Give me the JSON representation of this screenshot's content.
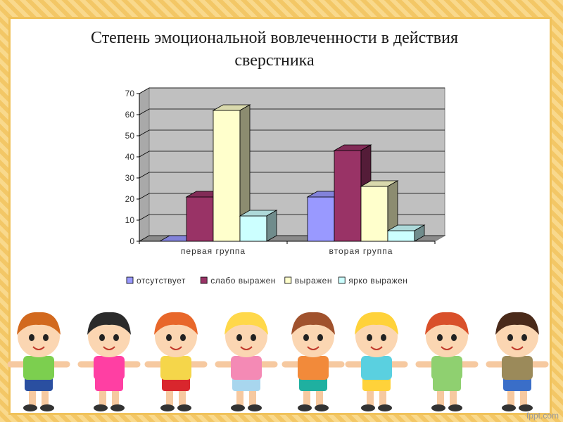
{
  "slide": {
    "title_line1": "Степень эмоциональной вовлеченности в действия",
    "title_line2": "сверстника",
    "watermark": "fppt.com"
  },
  "chart_data": {
    "type": "bar",
    "categories": [
      "первая группа",
      "вторая группа"
    ],
    "series": [
      {
        "name": "отсутствует",
        "values": [
          0,
          21
        ],
        "color": "#9999ff"
      },
      {
        "name": "слабо выражен",
        "values": [
          21,
          43
        ],
        "color": "#993366"
      },
      {
        "name": "выражен",
        "values": [
          62,
          26
        ],
        "color": "#ffffcc"
      },
      {
        "name": "ярко выражен",
        "values": [
          12,
          5
        ],
        "color": "#ccffff"
      }
    ],
    "yticks": [
      0,
      10,
      20,
      30,
      40,
      50,
      60,
      70
    ],
    "ylim": [
      0,
      70
    ],
    "grid": true,
    "legend": "bottom",
    "wall_color": "#c0c0c0"
  },
  "illustration": {
    "children": [
      {
        "hair": "#d2691e",
        "shirt": "#7ccf4f",
        "pants": "#2a4fa0"
      },
      {
        "hair": "#2b2b2b",
        "shirt": "#ff3fa3",
        "pants": "#ff3fa3"
      },
      {
        "hair": "#e8672a",
        "shirt": "#f5d64a",
        "pants": "#d9262d"
      },
      {
        "hair": "#ffd84a",
        "shirt": "#f48ab5",
        "pants": "#a8d6ee"
      },
      {
        "hair": "#a0522d",
        "shirt": "#f28a3a",
        "pants": "#1fb0a0"
      },
      {
        "hair": "#ffd23a",
        "shirt": "#5ad0e0",
        "pants": "#ffd23a"
      },
      {
        "hair": "#d9502a",
        "shirt": "#8fd070",
        "pants": "#8fd070"
      },
      {
        "hair": "#4a2a1a",
        "shirt": "#9b8a5a",
        "pants": "#3a6ec8"
      }
    ]
  }
}
